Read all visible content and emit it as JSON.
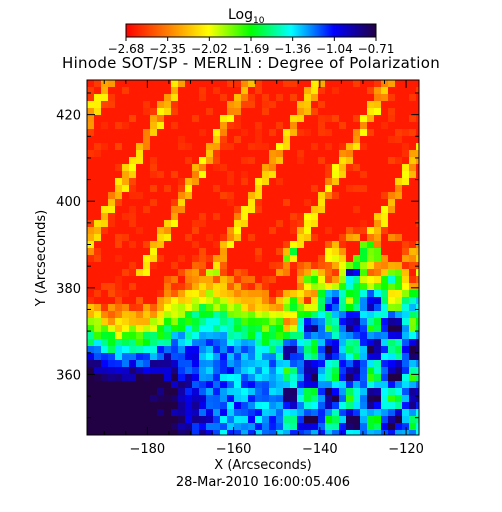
{
  "chart_data": {
    "type": "heatmap",
    "title": "Hinode SOT/SP - MERLIN : Degree of Polarization",
    "colorbar": {
      "label": "Log",
      "label_subscript": "10",
      "ticks": [
        "-2.68",
        "-2.35",
        "-2.02",
        "-1.69",
        "-1.36",
        "-1.04",
        "-0.71"
      ],
      "range": [
        -2.68,
        -0.71
      ],
      "colormap": [
        "#ff0000",
        "#ff8000",
        "#ffff00",
        "#00ff00",
        "#00ffff",
        "#0000ff",
        "#220044"
      ]
    },
    "xlabel": "X (Arcseconds)",
    "ylabel": "Y (Arcseconds)",
    "xlim": [
      -194,
      -117
    ],
    "ylim": [
      346,
      428
    ],
    "xticks": [
      -180,
      -160,
      -140,
      -120
    ],
    "xtick_labels": [
      "−180",
      "−160",
      "−140",
      "−120"
    ],
    "yticks": [
      360,
      380,
      400,
      420
    ],
    "ytick_labels": [
      "360",
      "380",
      "400",
      "420"
    ],
    "timestamp": "28-Mar-2010 16:00:05.406"
  }
}
